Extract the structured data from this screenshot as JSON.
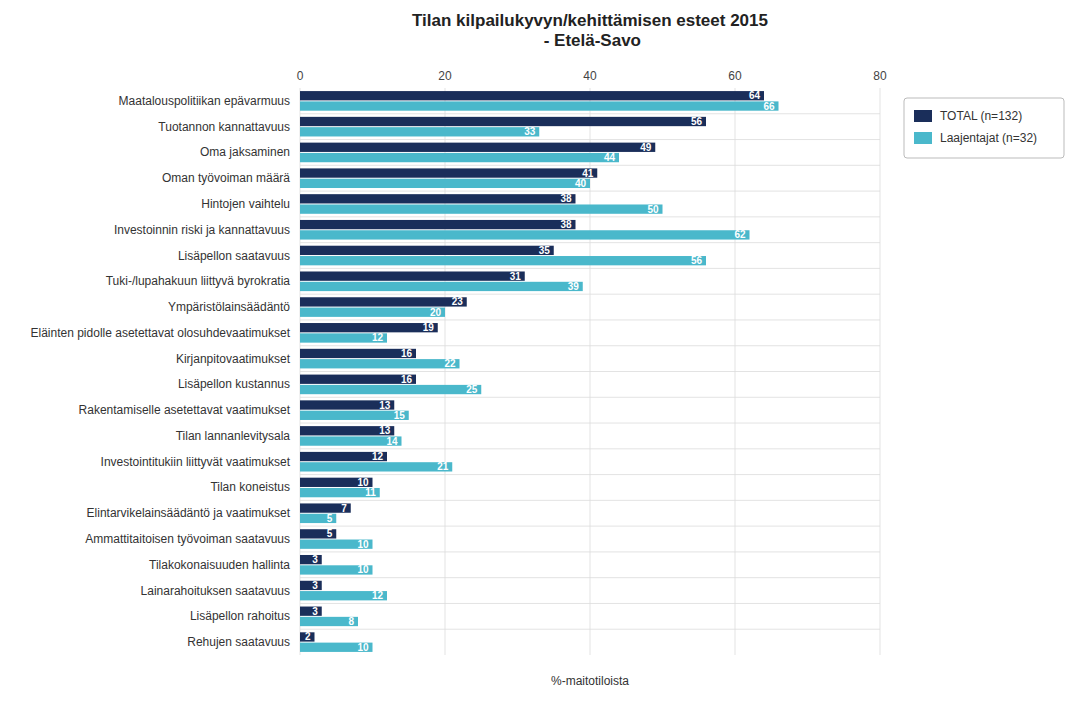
{
  "chart_data": {
    "type": "bar",
    "orientation": "horizontal",
    "title": "Tilan kilpailukyvyn/kehittämisen esteet 2015\n - Etelä-Savo",
    "xlabel": "%-maitotiloista",
    "categories": [
      "Maatalouspolitiikan epävarmuus",
      "Tuotannon kannattavuus",
      "Oma jaksaminen",
      "Oman työvoiman määrä",
      "Hintojen vaihtelu",
      "Investoinnin riski ja kannattavuus",
      "Lisäpellon saatavuus",
      "Tuki-/lupahakuun liittyvä byrokratia",
      "Ympäristölainsäädäntö",
      "Eläinten pidolle asetettavat olosuhdevaatimukset",
      "Kirjanpitovaatimukset",
      "Lisäpellon kustannus",
      "Rakentamiselle asetettavat vaatimukset",
      "Tilan lannanlevitysala",
      "Investointitukiin liittyvät vaatimukset",
      "Tilan koneistus",
      "Elintarvikelainsäädäntö ja vaatimukset",
      "Ammattitaitoisen työvoiman saatavuus",
      "Tilakokonaisuuden hallinta",
      "Lainarahoituksen saatavuus",
      "Lisäpellon rahoitus",
      "Rehujen saatavuus"
    ],
    "series": [
      {
        "name": "TOTAL (n=132)",
        "color": "#1a2e5a",
        "values": [
          64,
          56,
          49,
          41,
          38,
          38,
          35,
          31,
          23,
          19,
          16,
          16,
          13,
          13,
          12,
          10,
          7,
          5,
          3,
          3,
          3,
          2
        ]
      },
      {
        "name": "Laajentajat (n=32)",
        "color": "#4ab8cb",
        "values": [
          66,
          33,
          44,
          40,
          50,
          62,
          56,
          39,
          20,
          12,
          22,
          25,
          15,
          14,
          21,
          11,
          5,
          10,
          10,
          12,
          8,
          10
        ]
      }
    ],
    "xlim": [
      0,
      80
    ],
    "xticks": [
      0,
      20,
      40,
      60,
      80
    ],
    "grid": true,
    "legend": "right",
    "data_labels": true
  }
}
